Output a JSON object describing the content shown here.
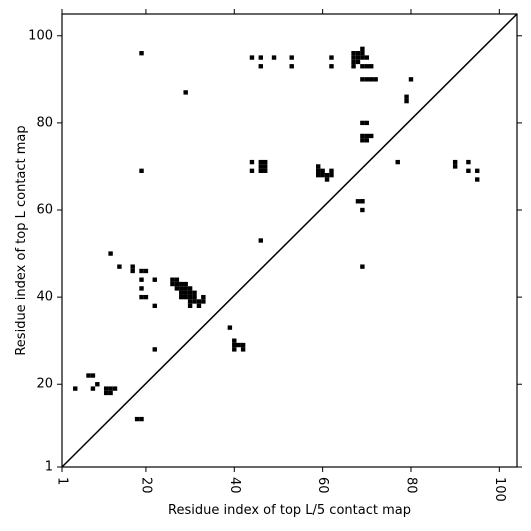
{
  "chart_data": {
    "type": "scatter",
    "xlabel": "Residue index of top L/5 contact map",
    "ylabel": "Residue index of top L contact map",
    "xlim": [
      1,
      104
    ],
    "ylim": [
      1,
      105
    ],
    "x_ticks": [
      1,
      20,
      40,
      60,
      80,
      100
    ],
    "y_ticks": [
      1,
      20,
      40,
      60,
      80,
      100
    ],
    "x_tick_labels": [
      "1",
      "20",
      "40",
      "60",
      "80",
      "100"
    ],
    "y_tick_labels": [
      "1",
      "20",
      "40",
      "60",
      "80",
      "100"
    ],
    "x_tick_rotation": 90,
    "diagonal": true,
    "grid": false,
    "marker_color": "#000000",
    "points": [
      [
        4,
        19
      ],
      [
        8,
        19
      ],
      [
        7,
        22
      ],
      [
        8,
        22
      ],
      [
        9,
        20
      ],
      [
        11,
        18
      ],
      [
        11,
        19
      ],
      [
        12,
        18
      ],
      [
        12,
        19
      ],
      [
        13,
        19
      ],
      [
        12,
        50
      ],
      [
        14,
        47
      ],
      [
        17,
        46
      ],
      [
        17,
        47
      ],
      [
        18,
        12
      ],
      [
        19,
        12
      ],
      [
        19,
        40
      ],
      [
        19,
        42
      ],
      [
        19,
        44
      ],
      [
        19,
        46
      ],
      [
        20,
        40
      ],
      [
        20,
        46
      ],
      [
        19,
        69
      ],
      [
        19,
        96
      ],
      [
        22,
        28
      ],
      [
        22,
        38
      ],
      [
        22,
        44
      ],
      [
        26,
        43
      ],
      [
        26,
        44
      ],
      [
        27,
        42
      ],
      [
        27,
        43
      ],
      [
        27,
        44
      ],
      [
        28,
        40
      ],
      [
        28,
        41
      ],
      [
        28,
        42
      ],
      [
        28,
        43
      ],
      [
        29,
        40
      ],
      [
        29,
        41
      ],
      [
        29,
        42
      ],
      [
        29,
        43
      ],
      [
        29,
        87
      ],
      [
        30,
        38
      ],
      [
        30,
        39
      ],
      [
        30,
        40
      ],
      [
        30,
        41
      ],
      [
        30,
        42
      ],
      [
        31,
        39
      ],
      [
        31,
        40
      ],
      [
        31,
        41
      ],
      [
        32,
        38
      ],
      [
        32,
        39
      ],
      [
        33,
        39
      ],
      [
        33,
        40
      ],
      [
        39,
        33
      ],
      [
        40,
        28
      ],
      [
        40,
        29
      ],
      [
        40,
        30
      ],
      [
        41,
        29
      ],
      [
        42,
        28
      ],
      [
        42,
        29
      ],
      [
        44,
        69
      ],
      [
        44,
        71
      ],
      [
        44,
        95
      ],
      [
        46,
        53
      ],
      [
        46,
        69
      ],
      [
        46,
        70
      ],
      [
        46,
        71
      ],
      [
        47,
        69
      ],
      [
        47,
        70
      ],
      [
        47,
        71
      ],
      [
        46,
        93
      ],
      [
        46,
        95
      ],
      [
        49,
        95
      ],
      [
        53,
        93
      ],
      [
        53,
        95
      ],
      [
        59,
        68
      ],
      [
        59,
        69
      ],
      [
        59,
        70
      ],
      [
        60,
        68
      ],
      [
        60,
        69
      ],
      [
        61,
        67
      ],
      [
        61,
        68
      ],
      [
        62,
        68
      ],
      [
        62,
        69
      ],
      [
        62,
        93
      ],
      [
        62,
        95
      ],
      [
        67,
        93
      ],
      [
        67,
        94
      ],
      [
        67,
        95
      ],
      [
        67,
        96
      ],
      [
        68,
        94
      ],
      [
        68,
        95
      ],
      [
        68,
        96
      ],
      [
        69,
        62
      ],
      [
        69,
        60
      ],
      [
        69,
        47
      ],
      [
        69,
        62
      ],
      [
        68,
        62
      ],
      [
        69,
        93
      ],
      [
        69,
        95
      ],
      [
        69,
        96
      ],
      [
        69,
        97
      ],
      [
        70,
        93
      ],
      [
        70,
        95
      ],
      [
        71,
        93
      ],
      [
        69,
        76
      ],
      [
        69,
        77
      ],
      [
        69,
        80
      ],
      [
        70,
        76
      ],
      [
        70,
        77
      ],
      [
        70,
        80
      ],
      [
        71,
        77
      ],
      [
        69,
        90
      ],
      [
        70,
        90
      ],
      [
        71,
        90
      ],
      [
        72,
        90
      ],
      [
        77,
        71
      ],
      [
        79,
        85
      ],
      [
        79,
        86
      ],
      [
        80,
        90
      ],
      [
        90,
        70
      ],
      [
        90,
        71
      ],
      [
        93,
        69
      ],
      [
        93,
        71
      ],
      [
        95,
        67
      ],
      [
        95,
        69
      ]
    ]
  }
}
